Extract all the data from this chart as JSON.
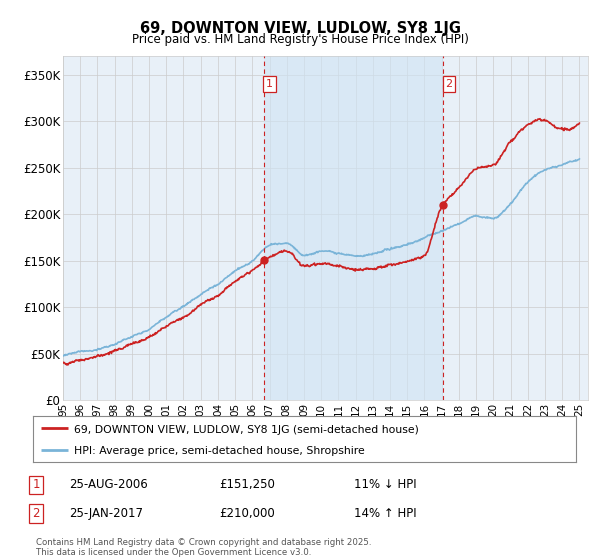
{
  "title": "69, DOWNTON VIEW, LUDLOW, SY8 1JG",
  "subtitle": "Price paid vs. HM Land Registry's House Price Index (HPI)",
  "background_color": "#ffffff",
  "plot_bg_color": "#e8f0f8",
  "plot_bg_shaded": "#dae8f5",
  "ylabel_ticks": [
    "£0",
    "£50K",
    "£100K",
    "£150K",
    "£200K",
    "£250K",
    "£300K",
    "£350K"
  ],
  "ytick_values": [
    0,
    50000,
    100000,
    150000,
    200000,
    250000,
    300000,
    350000
  ],
  "ylim": [
    0,
    370000
  ],
  "xlim_start": 1995.0,
  "xlim_end": 2025.5,
  "hpi_color": "#7ab4d8",
  "price_color": "#cc2222",
  "marker1_x": 2006.65,
  "marker1_y": 151250,
  "marker1_label": "1",
  "marker2_x": 2017.07,
  "marker2_y": 210000,
  "marker2_label": "2",
  "legend_line1": "69, DOWNTON VIEW, LUDLOW, SY8 1JG (semi-detached house)",
  "legend_line2": "HPI: Average price, semi-detached house, Shropshire",
  "annotation1_date": "25-AUG-2006",
  "annotation1_price": "£151,250",
  "annotation1_pct": "11% ↓ HPI",
  "annotation2_date": "25-JAN-2017",
  "annotation2_price": "£210,000",
  "annotation2_pct": "14% ↑ HPI",
  "footer": "Contains HM Land Registry data © Crown copyright and database right 2025.\nThis data is licensed under the Open Government Licence v3.0.",
  "xtick_years": [
    1995,
    1996,
    1997,
    1998,
    1999,
    2000,
    2001,
    2002,
    2003,
    2004,
    2005,
    2006,
    2007,
    2008,
    2009,
    2010,
    2011,
    2012,
    2013,
    2014,
    2015,
    2016,
    2017,
    2018,
    2019,
    2020,
    2021,
    2022,
    2023,
    2024,
    2025
  ],
  "grid_color": "#cccccc",
  "hpi_anchors_x": [
    1995,
    1996,
    1997,
    1998,
    1999,
    2000,
    2001,
    2002,
    2003,
    2004,
    2005,
    2006,
    2007,
    2008,
    2009,
    2010,
    2011,
    2012,
    2013,
    2014,
    2015,
    2016,
    2017,
    2018,
    2019,
    2020,
    2021,
    2022,
    2023,
    2024,
    2025
  ],
  "hpi_anchors_y": [
    47000,
    50000,
    54000,
    60000,
    67000,
    76000,
    89000,
    100000,
    113000,
    125000,
    140000,
    152000,
    168000,
    170000,
    157000,
    160000,
    158000,
    155000,
    158000,
    163000,
    168000,
    175000,
    182000,
    190000,
    198000,
    196000,
    212000,
    235000,
    248000,
    253000,
    258000
  ],
  "price_anchors_x": [
    1995,
    1996,
    1997,
    1998,
    1999,
    2000,
    2001,
    2002,
    2003,
    2004,
    2005,
    2006,
    2007,
    2008,
    2009,
    2010,
    2011,
    2012,
    2013,
    2014,
    2015,
    2016,
    2017,
    2018,
    2019,
    2020,
    2021,
    2022,
    2023,
    2024,
    2025
  ],
  "price_anchors_y": [
    42000,
    45000,
    48000,
    54000,
    61000,
    69000,
    81000,
    91000,
    103000,
    113000,
    128000,
    138000,
    151250,
    158000,
    141000,
    144000,
    141000,
    139000,
    141000,
    146000,
    151000,
    157000,
    210000,
    230000,
    248000,
    252000,
    278000,
    295000,
    302000,
    293000,
    298000
  ]
}
